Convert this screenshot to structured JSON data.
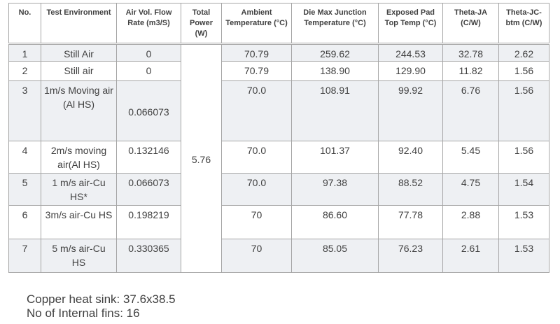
{
  "table": {
    "headers": [
      "No.",
      "Test Environment",
      "Air Vol. Flow Rate (m3/S)",
      "Total Power (W)",
      "Ambient Temperature (°C)",
      "Die Max Junction Temperature (°C)",
      "Exposed Pad Top Temp (°C)",
      "Theta-JA (C/W)",
      "Theta-JC-btm (C/W)"
    ],
    "total_power": "5.76",
    "rows": [
      [
        "1",
        "Still Air",
        "0",
        "70.79",
        "259.62",
        "244.53",
        "32.78",
        "2.62"
      ],
      [
        "2",
        "Still air",
        "0",
        "70.79",
        "138.90",
        "129.90",
        "11.82",
        "1.56"
      ],
      [
        "3",
        "1m/s Moving air (Al HS)",
        "0.066073",
        "70.0",
        "108.91",
        "99.92",
        "6.76",
        "1.56"
      ],
      [
        "4",
        "2m/s moving air(Al HS)",
        "0.132146",
        "70.0",
        "101.37",
        "92.40",
        "5.45",
        "1.56"
      ],
      [
        "5",
        "1 m/s air-Cu HS*",
        "0.066073",
        "70.0",
        "97.38",
        "88.52",
        "4.75",
        "1.54"
      ],
      [
        "6",
        "3m/s air-Cu HS",
        "0.198219",
        "70",
        "86.60",
        "77.78",
        "2.88",
        "1.53"
      ],
      [
        "7",
        "5 m/s air-Cu HS",
        "0.330365",
        "70",
        "85.05",
        "76.23",
        "2.61",
        "1.53"
      ]
    ]
  },
  "notes": [
    "Copper heat sink: 37.6x38.5",
    "No of Internal fins: 16"
  ]
}
